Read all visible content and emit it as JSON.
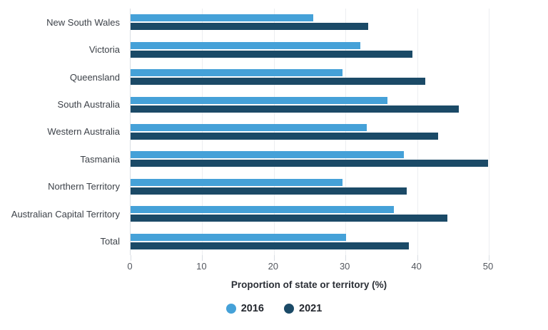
{
  "chart_data": {
    "type": "bar",
    "orientation": "horizontal",
    "title": "",
    "xlabel": "Proportion of state or territory (%)",
    "ylabel": "",
    "xlim": [
      0,
      50
    ],
    "xticks": [
      0,
      10,
      20,
      30,
      40,
      50
    ],
    "grid": true,
    "legend_position": "bottom",
    "categories": [
      "New South Wales",
      "Victoria",
      "Queensland",
      "South Australia",
      "Western Australia",
      "Tasmania",
      "Northern Territory",
      "Australian Capital Territory",
      "Total"
    ],
    "series": [
      {
        "name": "2016",
        "color": "#45a1d8",
        "values": [
          25.5,
          32.1,
          29.6,
          35.9,
          33.0,
          38.1,
          29.6,
          36.8,
          30.1
        ]
      },
      {
        "name": "2021",
        "color": "#1b4a67",
        "values": [
          33.2,
          39.3,
          41.1,
          45.8,
          42.9,
          49.9,
          38.5,
          44.2,
          38.8
        ]
      }
    ],
    "colors": {
      "gridline": "#eceef1",
      "axis_line": "#d9dde3",
      "category_label": "#3d4249",
      "tick_label": "#53575e"
    }
  }
}
